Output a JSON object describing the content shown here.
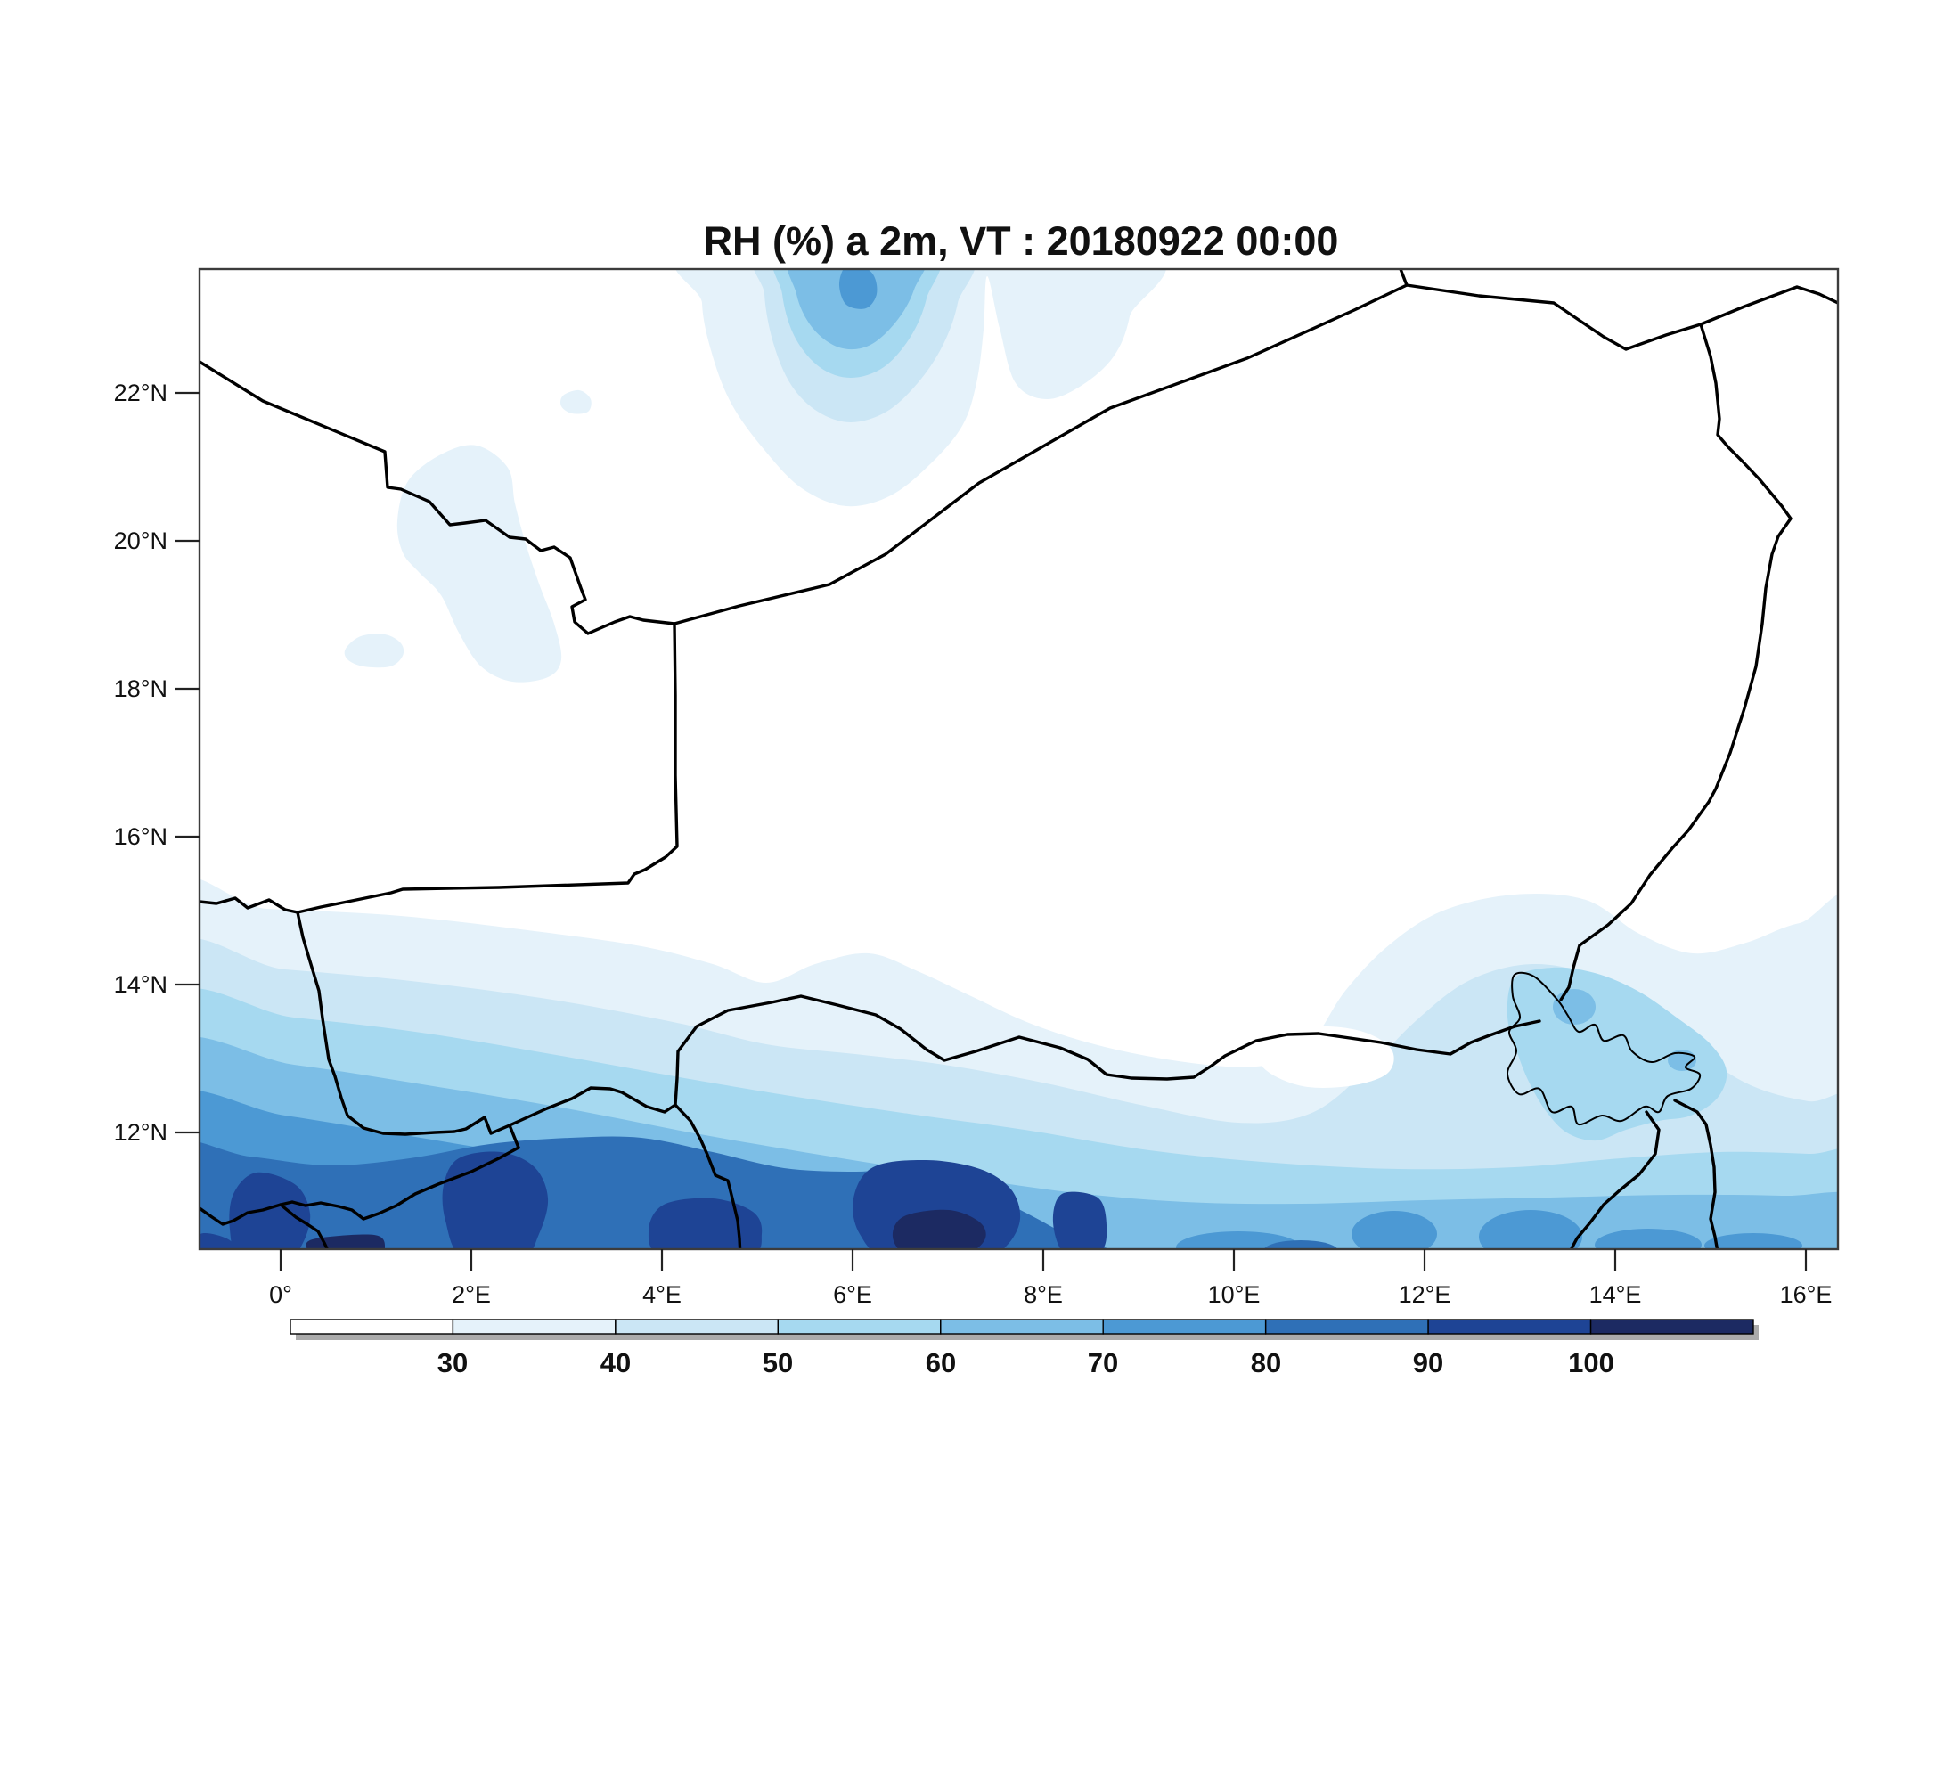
{
  "title": "RH (%) a 2m,  VT : 20180922  00:00",
  "axes": {
    "lat_labels": [
      "22°N",
      "20°N",
      "18°N",
      "16°N",
      "14°N",
      "12°N"
    ],
    "lon_labels": [
      "0°",
      "2°E",
      "4°E",
      "6°E",
      "8°E",
      "10°E",
      "12°E",
      "14°E",
      "16°E"
    ]
  },
  "colorbar": {
    "labels": [
      "30",
      "40",
      "50",
      "60",
      "70",
      "80",
      "90",
      "100"
    ],
    "colors": [
      "#ffffff",
      "#e5f2fa",
      "#cbe6f5",
      "#a6d9f0",
      "#7cbee6",
      "#4c99d4",
      "#2f70b7",
      "#1e4495",
      "#1c2a62"
    ],
    "shadow_color": "#ababab",
    "outline_color": "#000000"
  },
  "chart_data": {
    "type": "heatmap",
    "title": "RH (%) a 2m,  VT : 20180922  00:00",
    "variable": "RH (%) a 2m",
    "valid_time": "20180922 00:00",
    "x_ticks": [
      "0°",
      "2°E",
      "4°E",
      "6°E",
      "8°E",
      "10°E",
      "12°E",
      "14°E",
      "16°E"
    ],
    "y_ticks": [
      "12°N",
      "14°N",
      "16°N",
      "18°N",
      "20°N",
      "22°N"
    ],
    "xlim_deg_east": [
      -0.85,
      16.45
    ],
    "ylim_deg_north": [
      10.4,
      23.7
    ],
    "contour_levels_percent": [
      30,
      40,
      50,
      60,
      70,
      80,
      90,
      100
    ],
    "palette": [
      "#ffffff",
      "#e5f2fa",
      "#cbe6f5",
      "#a6d9f0",
      "#7cbee6",
      "#4c99d4",
      "#2f70b7",
      "#1e4495",
      "#1c2a62"
    ],
    "legend_position": "bottom horizontal colorbar",
    "grid": false,
    "map_overlay": "national borders of Niger and neighbours (Algeria, Libya, Mali, Burkina Faso, Benin, Nigeria, Chad) and Lake Chad outline",
    "regions": [
      {
        "area": "Sahara north of ~15°N",
        "rh_percent": "<30"
      },
      {
        "area": "zonal bands 10.5-15°N, RH increasing southward",
        "rh_percent": "30-80"
      },
      {
        "area": "southern edge ~10.5-11.5°N between 0° and 8°E",
        "rh_percent": "80->100"
      },
      {
        "area": "isolated maximum near 6-7°E, 23°N",
        "rh_percent": "up to 70-80"
      },
      {
        "area": "patch near 2-3°E, 18.5-21.5°N",
        "rh_percent": "30-40"
      },
      {
        "area": "Lake Chad area ~13.5-14.5°E, 12.5-14.5°N",
        "rh_percent": "40-70"
      },
      {
        "area": "white oval near 11.5°E, 12.8°N",
        "rh_percent": "<30"
      }
    ]
  }
}
